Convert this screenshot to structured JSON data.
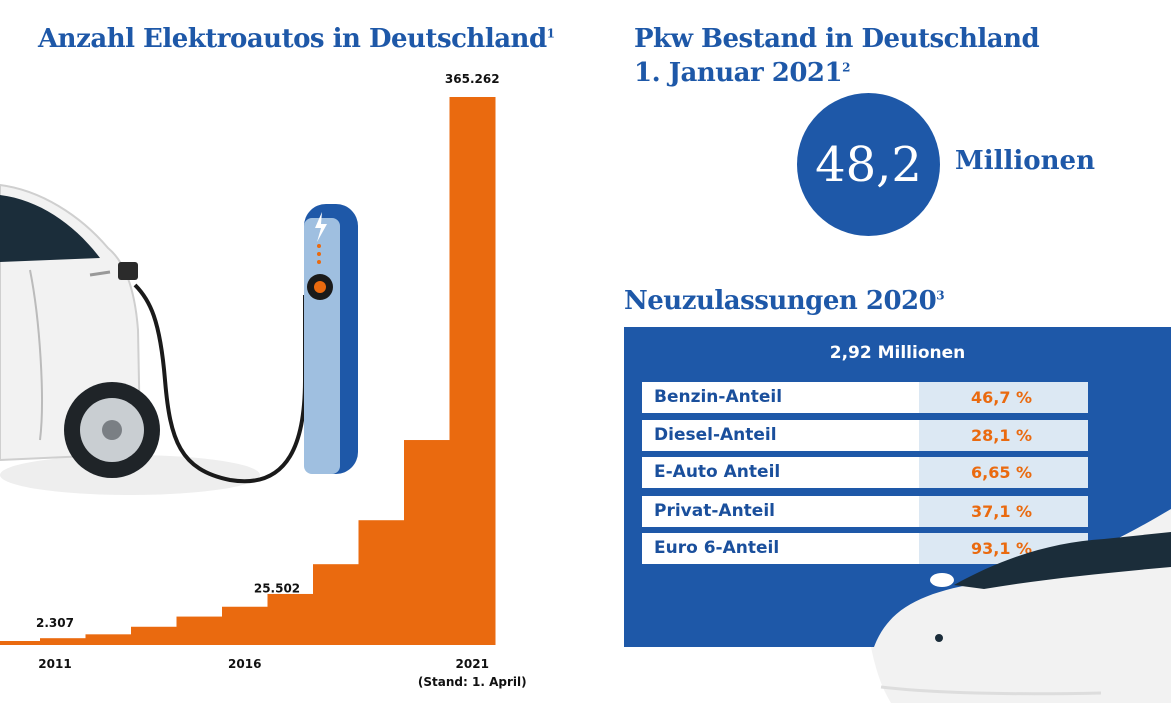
{
  "left_title": {
    "text": "Anzahl Elektroautos in Deutschland",
    "sup": "1"
  },
  "right_title": {
    "line1": "Pkw Bestand in Deutschland",
    "line2": "1. Januar 2021",
    "sup": "2"
  },
  "stock": {
    "value": "48,2",
    "unit": "Millionen"
  },
  "registrations": {
    "title": "Neuzulassungen 2020",
    "sup": "3",
    "total": "2,92 Millionen",
    "rows": [
      {
        "label": "Benzin-Anteil",
        "value": "46,7 %"
      },
      {
        "label": "Diesel-Anteil",
        "value": "28,1 %"
      },
      {
        "label": "E-Auto Anteil",
        "value": "6,65 %"
      },
      {
        "label": "Privat-Anteil",
        "value": "37,1 %"
      },
      {
        "label": "Euro 6-Anteil",
        "value": "93,1 %"
      }
    ]
  },
  "colors": {
    "bar": "#ea6a0f",
    "brand_blue": "#1e58a8",
    "table_value_bg": "#dce8f3"
  },
  "chart_data": {
    "type": "bar",
    "title": "Anzahl Elektroautos in Deutschland",
    "categories": [
      "2011",
      "2012",
      "2013",
      "2014",
      "2015",
      "2016",
      "2017",
      "2018",
      "2019",
      "2020",
      "2021"
    ],
    "tick_labels": [
      "2011",
      "2016",
      "2021"
    ],
    "tick_note": "(Stand: 1. April)",
    "values": [
      2307,
      4541,
      7114,
      12156,
      18948,
      25502,
      34022,
      53861,
      83175,
      136617,
      365262
    ],
    "value_labels": {
      "2011": "2.307",
      "2016": "25.502",
      "2021": "365.262"
    },
    "ylim": [
      0,
      365262
    ],
    "grid": false,
    "legend": "none"
  }
}
